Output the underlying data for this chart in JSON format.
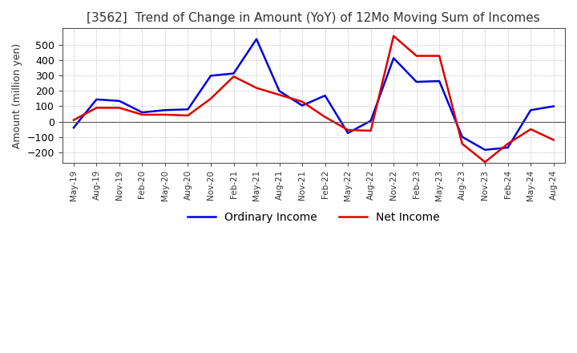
{
  "title": "[3562]  Trend of Change in Amount (YoY) of 12Mo Moving Sum of Incomes",
  "ylabel": "Amount (million yen)",
  "ylim": [
    -270,
    610
  ],
  "yticks": [
    -200,
    -100,
    0,
    100,
    200,
    300,
    400,
    500
  ],
  "background_color": "#ffffff",
  "grid_color": "#aaaaaa",
  "line1_color": "#0000dd",
  "line2_color": "#dd0000",
  "line1_label": "Ordinary Income",
  "line2_label": "Net Income",
  "dates": [
    "May-19",
    "Aug-19",
    "Nov-19",
    "Feb-20",
    "May-20",
    "Aug-20",
    "Nov-20",
    "Feb-21",
    "May-21",
    "Aug-21",
    "Nov-21",
    "Feb-22",
    "May-22",
    "Aug-22",
    "Nov-22",
    "Feb-23",
    "May-23",
    "Aug-23",
    "Nov-23",
    "Feb-24",
    "May-24",
    "Aug-24"
  ],
  "ordinary_income": [
    -40,
    145,
    135,
    60,
    75,
    80,
    300,
    315,
    540,
    200,
    105,
    170,
    -75,
    5,
    415,
    260,
    265,
    -100,
    -185,
    -170,
    75,
    100
  ],
  "net_income": [
    10,
    90,
    90,
    45,
    45,
    40,
    150,
    295,
    220,
    175,
    130,
    30,
    -55,
    -60,
    560,
    430,
    430,
    -145,
    -265,
    -145,
    -50,
    -120
  ]
}
